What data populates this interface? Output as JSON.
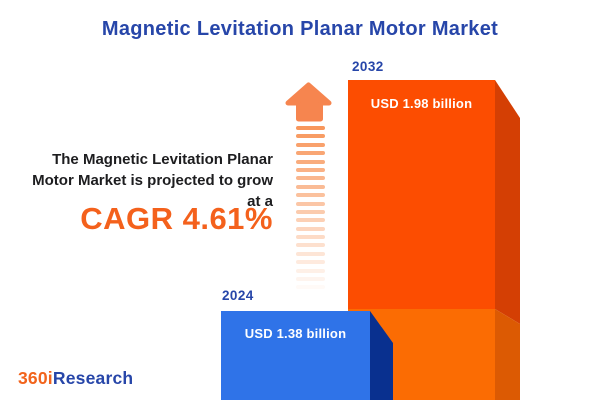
{
  "title": "Magnetic Levitation Planar Motor Market",
  "subtitle": {
    "lines": [
      "The Magnetic Levitation Planar",
      "Motor Market is projected to grow",
      "at a"
    ],
    "cagr": "CAGR 4.61%"
  },
  "chart_data": {
    "type": "bar",
    "categories": [
      "2024",
      "2032"
    ],
    "values": [
      1.38,
      1.98
    ],
    "value_labels": [
      "USD 1.38 billion",
      "USD 1.98 billion"
    ],
    "unit": "USD billion",
    "cagr_percent": 4.61,
    "title": "Magnetic Levitation Planar Motor Market",
    "legend": false,
    "style": "3d-extruded-bars",
    "bar_colors": {
      "y2024_front": "#2F73E8",
      "y2024_side": "#09308F",
      "y2032_front_upper": "#FC4D01",
      "y2032_front_lower": "#FB6C03",
      "y2032_side_upper": "#D43F04",
      "y2032_side_lower": "#DC5A03"
    }
  },
  "colors": {
    "title_blue": "#2746A9",
    "text_dark": "#1D1D1F",
    "accent_orange": "#F4611C",
    "arrow_head": "#F6854F",
    "arrow_stripe": "#F8975C"
  },
  "logo": {
    "prefix": "360i",
    "suffix": "Research"
  }
}
